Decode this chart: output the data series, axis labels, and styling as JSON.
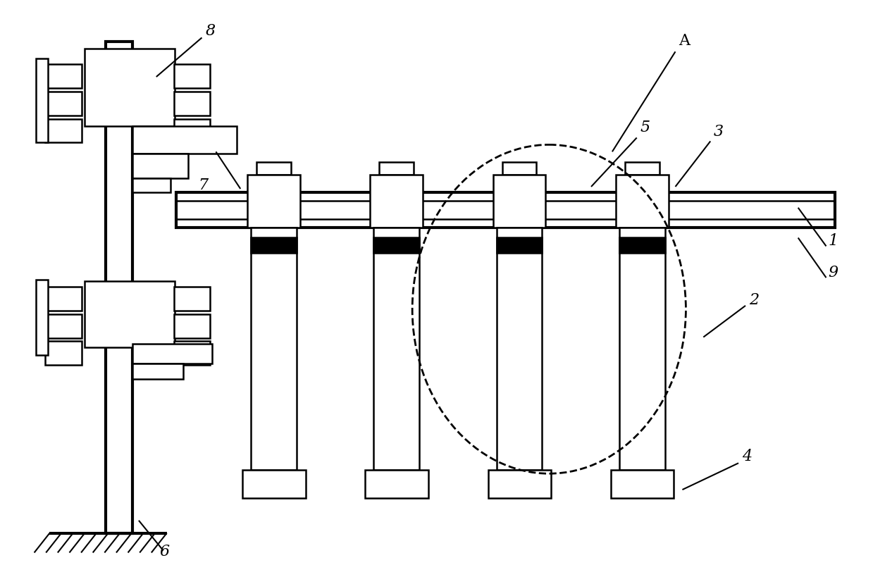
{
  "bg_color": "#ffffff",
  "lc": "#000000",
  "lw": 1.8,
  "tlw": 3.0,
  "label_fs": 16,
  "fig_w": 12.39,
  "fig_h": 8.2
}
